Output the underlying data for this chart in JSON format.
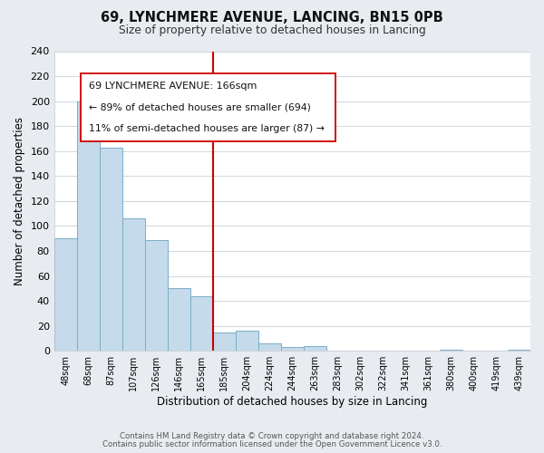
{
  "title": "69, LYNCHMERE AVENUE, LANCING, BN15 0PB",
  "subtitle": "Size of property relative to detached houses in Lancing",
  "xlabel": "Distribution of detached houses by size in Lancing",
  "ylabel": "Number of detached properties",
  "bin_labels": [
    "48sqm",
    "68sqm",
    "87sqm",
    "107sqm",
    "126sqm",
    "146sqm",
    "165sqm",
    "185sqm",
    "204sqm",
    "224sqm",
    "244sqm",
    "263sqm",
    "283sqm",
    "302sqm",
    "322sqm",
    "341sqm",
    "361sqm",
    "380sqm",
    "400sqm",
    "419sqm",
    "439sqm"
  ],
  "bar_values": [
    90,
    200,
    163,
    106,
    89,
    50,
    44,
    15,
    16,
    6,
    3,
    4,
    0,
    0,
    0,
    0,
    0,
    1,
    0,
    0,
    1
  ],
  "bar_color": "#c5daea",
  "bar_edge_color": "#7aaec8",
  "reference_line_color": "#cc0000",
  "ylim": [
    0,
    240
  ],
  "yticks": [
    0,
    20,
    40,
    60,
    80,
    100,
    120,
    140,
    160,
    180,
    200,
    220,
    240
  ],
  "annotation_line1": "69 LYNCHMERE AVENUE: 166sqm",
  "annotation_line2": "← 89% of detached houses are smaller (694)",
  "annotation_line3": "11% of semi-detached houses are larger (87) →",
  "footer_line1": "Contains HM Land Registry data © Crown copyright and database right 2024.",
  "footer_line2": "Contains public sector information licensed under the Open Government Licence v3.0.",
  "background_color": "#e8ecf0",
  "plot_bg_color": "#ffffff"
}
